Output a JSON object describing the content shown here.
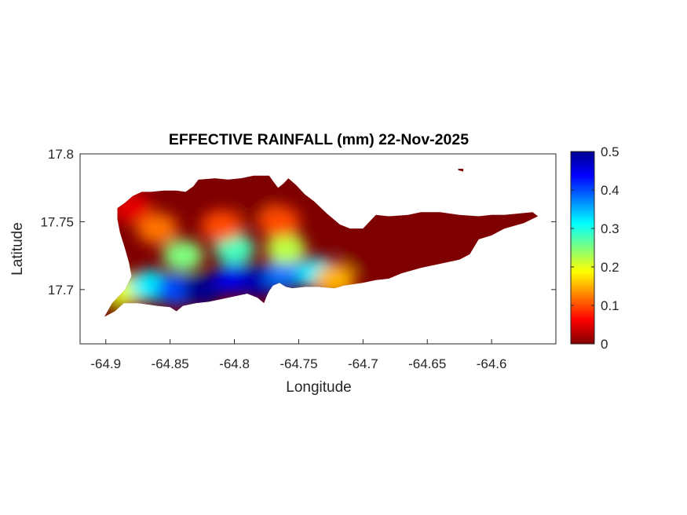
{
  "chart_data": {
    "type": "heatmap",
    "title": "EFFECTIVE RAINFALL (mm) 22-Nov-2025",
    "xlabel": "Longitude",
    "ylabel": "Latitude",
    "xlim": [
      -64.92,
      -64.55
    ],
    "ylim": [
      17.66,
      17.8
    ],
    "xticks": [
      -64.9,
      -64.85,
      -64.8,
      -64.75,
      -64.7,
      -64.65,
      -64.6
    ],
    "xtick_labels": [
      "-64.9",
      "-64.85",
      "-64.8",
      "-64.75",
      "-64.7",
      "-64.65",
      "-64.6"
    ],
    "yticks": [
      17.7,
      17.75,
      17.8
    ],
    "ytick_labels": [
      "17.7",
      "17.75",
      "17.8"
    ],
    "colormap": "jet",
    "clim": [
      0,
      0.5
    ],
    "colorbar_ticks": [
      0,
      0.1,
      0.2,
      0.3,
      0.4,
      0.5
    ],
    "colorbar_tick_labels": [
      "0",
      "0.1",
      "0.2",
      "0.3",
      "0.4",
      "0.5"
    ],
    "colorbar_colors": [
      "#7f0000",
      "#ff0000",
      "#ff7f00",
      "#ffff00",
      "#7fff7f",
      "#00ffff",
      "#007fff",
      "#0000ff",
      "#00008f"
    ],
    "grid": false,
    "outline": [
      [
        -64.901,
        17.68
      ],
      [
        -64.893,
        17.684
      ],
      [
        -64.886,
        17.69
      ],
      [
        -64.875,
        17.69
      ],
      [
        -64.86,
        17.688
      ],
      [
        -64.85,
        17.687
      ],
      [
        -64.845,
        17.684
      ],
      [
        -64.84,
        17.688
      ],
      [
        -64.83,
        17.69
      ],
      [
        -64.82,
        17.691
      ],
      [
        -64.81,
        17.693
      ],
      [
        -64.8,
        17.695
      ],
      [
        -64.79,
        17.697
      ],
      [
        -64.782,
        17.694
      ],
      [
        -64.777,
        17.69
      ],
      [
        -64.775,
        17.695
      ],
      [
        -64.773,
        17.699
      ],
      [
        -64.77,
        17.703
      ],
      [
        -64.765,
        17.705
      ],
      [
        -64.76,
        17.702
      ],
      [
        -64.755,
        17.701
      ],
      [
        -64.745,
        17.702
      ],
      [
        -64.735,
        17.702
      ],
      [
        -64.722,
        17.701
      ],
      [
        -64.715,
        17.703
      ],
      [
        -64.7,
        17.705
      ],
      [
        -64.69,
        17.707
      ],
      [
        -64.68,
        17.708
      ],
      [
        -64.67,
        17.712
      ],
      [
        -64.655,
        17.716
      ],
      [
        -64.645,
        17.718
      ],
      [
        -64.635,
        17.72
      ],
      [
        -64.625,
        17.722
      ],
      [
        -64.617,
        17.726
      ],
      [
        -64.61,
        17.737
      ],
      [
        -64.6,
        17.74
      ],
      [
        -64.59,
        17.745
      ],
      [
        -64.575,
        17.749
      ],
      [
        -64.564,
        17.754
      ],
      [
        -64.568,
        17.757
      ],
      [
        -64.58,
        17.756
      ],
      [
        -64.59,
        17.755
      ],
      [
        -64.6,
        17.755
      ],
      [
        -64.61,
        17.754
      ],
      [
        -64.625,
        17.755
      ],
      [
        -64.64,
        17.757
      ],
      [
        -64.655,
        17.757
      ],
      [
        -64.665,
        17.755
      ],
      [
        -64.68,
        17.754
      ],
      [
        -64.69,
        17.755
      ],
      [
        -64.7,
        17.745
      ],
      [
        -64.71,
        17.745
      ],
      [
        -64.718,
        17.748
      ],
      [
        -64.728,
        17.756
      ],
      [
        -64.738,
        17.765
      ],
      [
        -64.745,
        17.77
      ],
      [
        -64.752,
        17.777
      ],
      [
        -64.758,
        17.782
      ],
      [
        -64.762,
        17.778
      ],
      [
        -64.766,
        17.775
      ],
      [
        -64.77,
        17.78
      ],
      [
        -64.773,
        17.784
      ],
      [
        -64.778,
        17.784
      ],
      [
        -64.785,
        17.784
      ],
      [
        -64.795,
        17.782
      ],
      [
        -64.805,
        17.781
      ],
      [
        -64.815,
        17.782
      ],
      [
        -64.828,
        17.781
      ],
      [
        -64.832,
        17.776
      ],
      [
        -64.838,
        17.772
      ],
      [
        -64.845,
        17.773
      ],
      [
        -64.855,
        17.773
      ],
      [
        -64.865,
        17.772
      ],
      [
        -64.872,
        17.772
      ],
      [
        -64.879,
        17.769
      ],
      [
        -64.885,
        17.764
      ],
      [
        -64.891,
        17.76
      ],
      [
        -64.891,
        17.752
      ],
      [
        -64.889,
        17.742
      ],
      [
        -64.885,
        17.73
      ],
      [
        -64.882,
        17.72
      ],
      [
        -64.88,
        17.71
      ],
      [
        -64.885,
        17.7
      ],
      [
        -64.895,
        17.69
      ]
    ],
    "islet": [
      [
        -64.626,
        17.789
      ],
      [
        -64.622,
        17.789
      ],
      [
        -64.622,
        17.787
      ],
      [
        -64.626,
        17.788
      ]
    ],
    "rainfall_field": [
      {
        "lon": -64.9,
        "lat": 17.682,
        "value": 0.0
      },
      {
        "lon": -64.883,
        "lat": 17.7,
        "value": 0.2
      },
      {
        "lon": -64.865,
        "lat": 17.703,
        "value": 0.32
      },
      {
        "lon": -64.845,
        "lat": 17.7,
        "value": 0.4
      },
      {
        "lon": -64.825,
        "lat": 17.7,
        "value": 0.5
      },
      {
        "lon": -64.8,
        "lat": 17.708,
        "value": 0.45
      },
      {
        "lon": -64.78,
        "lat": 17.706,
        "value": 0.48
      },
      {
        "lon": -64.76,
        "lat": 17.712,
        "value": 0.38
      },
      {
        "lon": -64.735,
        "lat": 17.712,
        "value": 0.32
      },
      {
        "lon": -64.722,
        "lat": 17.707,
        "value": 0.15
      },
      {
        "lon": -64.84,
        "lat": 17.725,
        "value": 0.25
      },
      {
        "lon": -64.8,
        "lat": 17.73,
        "value": 0.28
      },
      {
        "lon": -64.76,
        "lat": 17.73,
        "value": 0.22
      },
      {
        "lon": -64.86,
        "lat": 17.745,
        "value": 0.12
      },
      {
        "lon": -64.81,
        "lat": 17.747,
        "value": 0.1
      },
      {
        "lon": -64.78,
        "lat": 17.76,
        "value": 0.0
      },
      {
        "lon": -64.765,
        "lat": 17.75,
        "value": 0.1
      },
      {
        "lon": -64.88,
        "lat": 17.76,
        "value": 0.05
      },
      {
        "lon": -64.7,
        "lat": 17.725,
        "value": 0.0
      },
      {
        "lon": -64.65,
        "lat": 17.735,
        "value": 0.0
      },
      {
        "lon": -64.6,
        "lat": 17.748,
        "value": 0.0
      }
    ]
  }
}
